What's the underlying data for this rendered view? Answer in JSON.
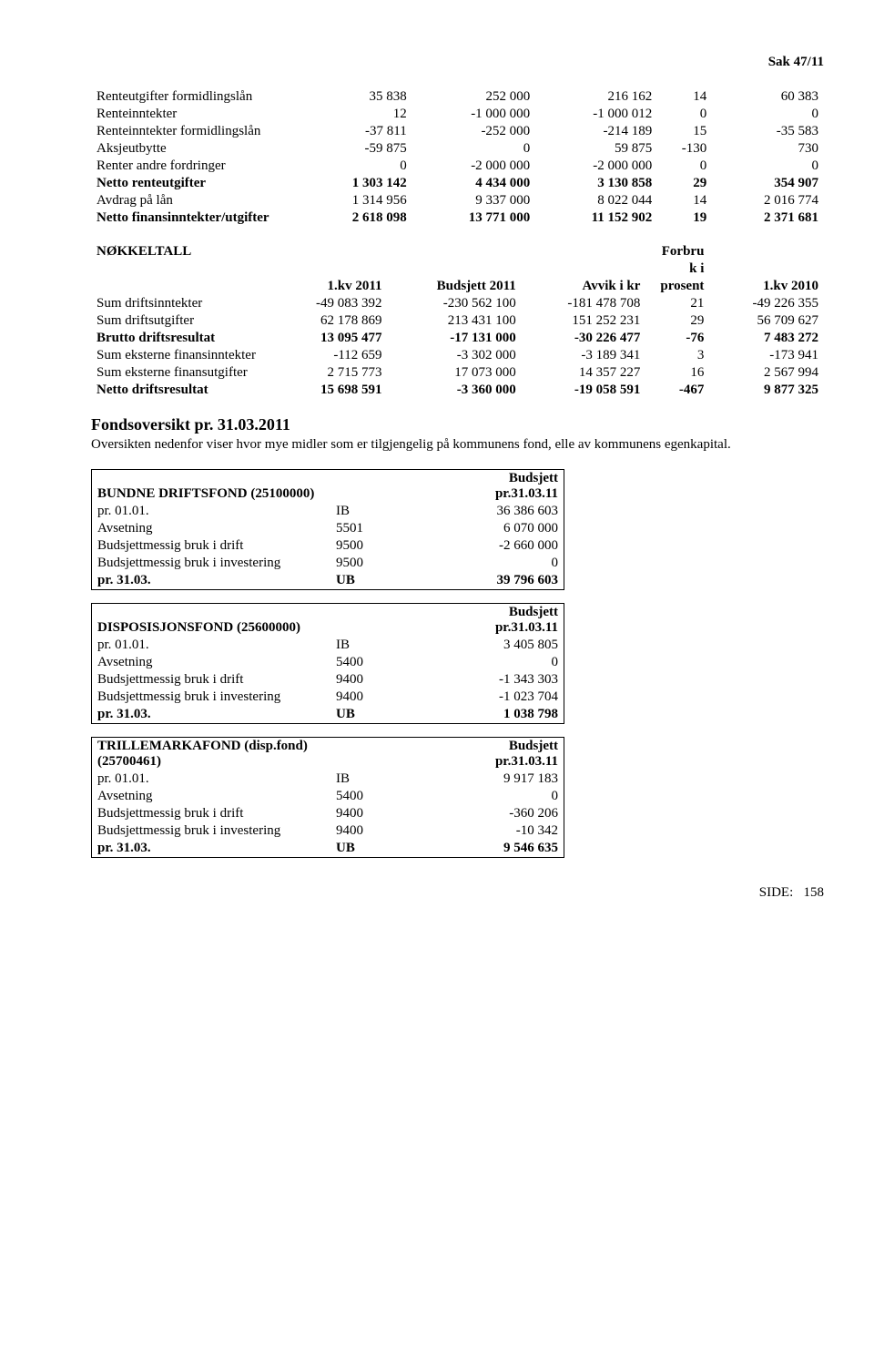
{
  "header": {
    "case": "Sak  47/11"
  },
  "table1": {
    "rows": [
      {
        "label": "Renteutgifter formidlingslån",
        "c1": "35 838",
        "c2": "252 000",
        "c3": "216 162",
        "c4": "14",
        "c5": "60 383",
        "bold": false
      },
      {
        "label": "Renteinntekter",
        "c1": "12",
        "c2": "-1 000 000",
        "c3": "-1 000 012",
        "c4": "0",
        "c5": "0",
        "bold": false
      },
      {
        "label": "Renteinntekter formidlingslån",
        "c1": "-37 811",
        "c2": "-252 000",
        "c3": "-214 189",
        "c4": "15",
        "c5": "-35 583",
        "bold": false
      },
      {
        "label": "Aksjeutbytte",
        "c1": "-59 875",
        "c2": "0",
        "c3": "59 875",
        "c4": "-130",
        "c5": "730",
        "bold": false
      },
      {
        "label": "Renter andre fordringer",
        "c1": "0",
        "c2": "-2 000 000",
        "c3": "-2 000 000",
        "c4": "0",
        "c5": "0",
        "bold": false
      },
      {
        "label": "Netto renteutgifter",
        "c1": "1 303 142",
        "c2": "4 434 000",
        "c3": "3 130 858",
        "c4": "29",
        "c5": "354 907",
        "bold": true
      },
      {
        "label": "Avdrag på lån",
        "c1": "1 314 956",
        "c2": "9 337 000",
        "c3": "8 022 044",
        "c4": "14",
        "c5": "2 016 774",
        "bold": false
      },
      {
        "label": "Netto finansinntekter/utgifter",
        "c1": "2 618 098",
        "c2": "13 771 000",
        "c3": "11 152 902",
        "c4": "19",
        "c5": "2 371 681",
        "bold": true
      }
    ]
  },
  "table2": {
    "header": {
      "c0": "NØKKELTALL",
      "c1": "1.kv 2011",
      "c2": "Budsjett 2011",
      "c3": "Avvik i kr",
      "c4a": "Forbru",
      "c4b": "k i",
      "c4c": "prosent",
      "c5": "1.kv 2010"
    },
    "rows": [
      {
        "label": "Sum driftsinntekter",
        "c1": "-49 083 392",
        "c2": "-230 562 100",
        "c3": "-181 478 708",
        "c4": "21",
        "c5": "-49 226 355",
        "bold": false
      },
      {
        "label": "Sum driftsutgifter",
        "c1": "62 178 869",
        "c2": "213 431 100",
        "c3": "151 252 231",
        "c4": "29",
        "c5": "56 709 627",
        "bold": false
      },
      {
        "label": "Brutto driftsresultat",
        "c1": "13 095 477",
        "c2": "-17 131 000",
        "c3": "-30 226 477",
        "c4": "-76",
        "c5": "7 483 272",
        "bold": true
      },
      {
        "label": "Sum eksterne finansinntekter",
        "c1": "-112 659",
        "c2": "-3 302 000",
        "c3": "-3 189 341",
        "c4": "3",
        "c5": "-173 941",
        "bold": false
      },
      {
        "label": "Sum eksterne finansutgifter",
        "c1": "2 715 773",
        "c2": "17 073 000",
        "c3": "14 357 227",
        "c4": "16",
        "c5": "2 567 994",
        "bold": false
      },
      {
        "label": "Netto driftsresultat",
        "c1": "15 698 591",
        "c2": "-3 360 000",
        "c3": "-19 058 591",
        "c4": "-467",
        "c5": "9 877 325",
        "bold": true
      }
    ]
  },
  "section": {
    "title": "Fondsoversikt pr. 31.03.2011",
    "body": "Oversikten nedenfor viser hvor mye midler som er tilgjengelig på kommunens fond, elle av kommunens egenkapital."
  },
  "funds": [
    {
      "name": "BUNDNE DRIFTSFOND (25100000)",
      "hdr_right_a": "Budsjett",
      "hdr_right_b": "pr.31.03.11",
      "rows": [
        {
          "l": "pr. 01.01.",
          "m": "IB",
          "r": "36 386 603"
        },
        {
          "l": "Avsetning",
          "m": "5501",
          "r": "6 070 000"
        },
        {
          "l": "Budsjettmessig bruk i drift",
          "m": "9500",
          "r": "-2 660 000"
        },
        {
          "l": "Budsjettmessig bruk i investering",
          "m": "9500",
          "r": "0"
        },
        {
          "l": "pr. 31.03.",
          "m": "UB",
          "r": "39 796 603",
          "bold": true
        }
      ]
    },
    {
      "name": "DISPOSISJONSFOND (25600000)",
      "hdr_right_a": "Budsjett",
      "hdr_right_b": "pr.31.03.11",
      "rows": [
        {
          "l": "pr. 01.01.",
          "m": "IB",
          "r": "3 405 805"
        },
        {
          "l": "Avsetning",
          "m": "5400",
          "r": "0"
        },
        {
          "l": "Budsjettmessig bruk i drift",
          "m": "9400",
          "r": "-1 343 303"
        },
        {
          "l": "Budsjettmessig bruk i investering",
          "m": "9400",
          "r": "-1 023 704"
        },
        {
          "l": "pr. 31.03.",
          "m": "UB",
          "r": "1 038 798",
          "bold": true
        }
      ]
    },
    {
      "name": "TRILLEMARKAFOND (disp.fond) (25700461)",
      "hdr_right_a": "Budsjett",
      "hdr_right_b": "pr.31.03.11",
      "rows": [
        {
          "l": "pr. 01.01.",
          "m": "IB",
          "r": "9 917 183"
        },
        {
          "l": "Avsetning",
          "m": "5400",
          "r": "0"
        },
        {
          "l": "Budsjettmessig bruk i drift",
          "m": "9400",
          "r": "-360 206"
        },
        {
          "l": "Budsjettmessig bruk i investering",
          "m": "9400",
          "r": "-10 342"
        },
        {
          "l": "pr. 31.03.",
          "m": "UB",
          "r": "9 546 635",
          "bold": true
        }
      ]
    }
  ],
  "footer": {
    "label": "SIDE:",
    "num": "158"
  }
}
